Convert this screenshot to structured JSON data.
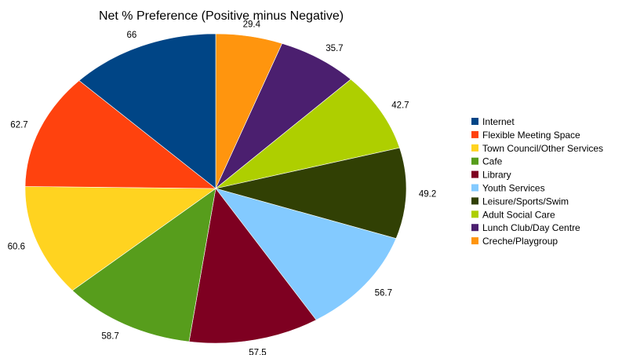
{
  "chart_data": {
    "type": "pie",
    "title": "Net % Preference (Positive minus Negative)",
    "legend_position": "right",
    "slices": [
      {
        "label": "Creche/Playgroup",
        "value": 29.4,
        "color": "#FF950E"
      },
      {
        "label": "Lunch Club/Day Centre",
        "value": 35.7,
        "color": "#4B1F6F"
      },
      {
        "label": "Adult Social Care",
        "value": 42.7,
        "color": "#AECF00"
      },
      {
        "label": "Leisure/Sports/Swim",
        "value": 49.2,
        "color": "#314004"
      },
      {
        "label": "Youth Services",
        "value": 56.7,
        "color": "#83CAFF"
      },
      {
        "label": "Library",
        "value": 57.5,
        "color": "#7E0021"
      },
      {
        "label": "Cafe",
        "value": 58.7,
        "color": "#579D1C"
      },
      {
        "label": "Town Council/Other Services",
        "value": 60.6,
        "color": "#FFD320"
      },
      {
        "label": "Flexible Meeting Space",
        "value": 62.7,
        "color": "#FF420E"
      },
      {
        "label": "Internet",
        "value": 66,
        "color": "#004586"
      }
    ],
    "legend": [
      "Internet",
      "Flexible Meeting Space",
      "Town Council/Other Services",
      "Cafe",
      "Library",
      "Youth Services",
      "Leisure/Sports/Swim",
      "Adult Social Care",
      "Lunch Club/Day Centre",
      "Creche/Playgroup"
    ]
  }
}
